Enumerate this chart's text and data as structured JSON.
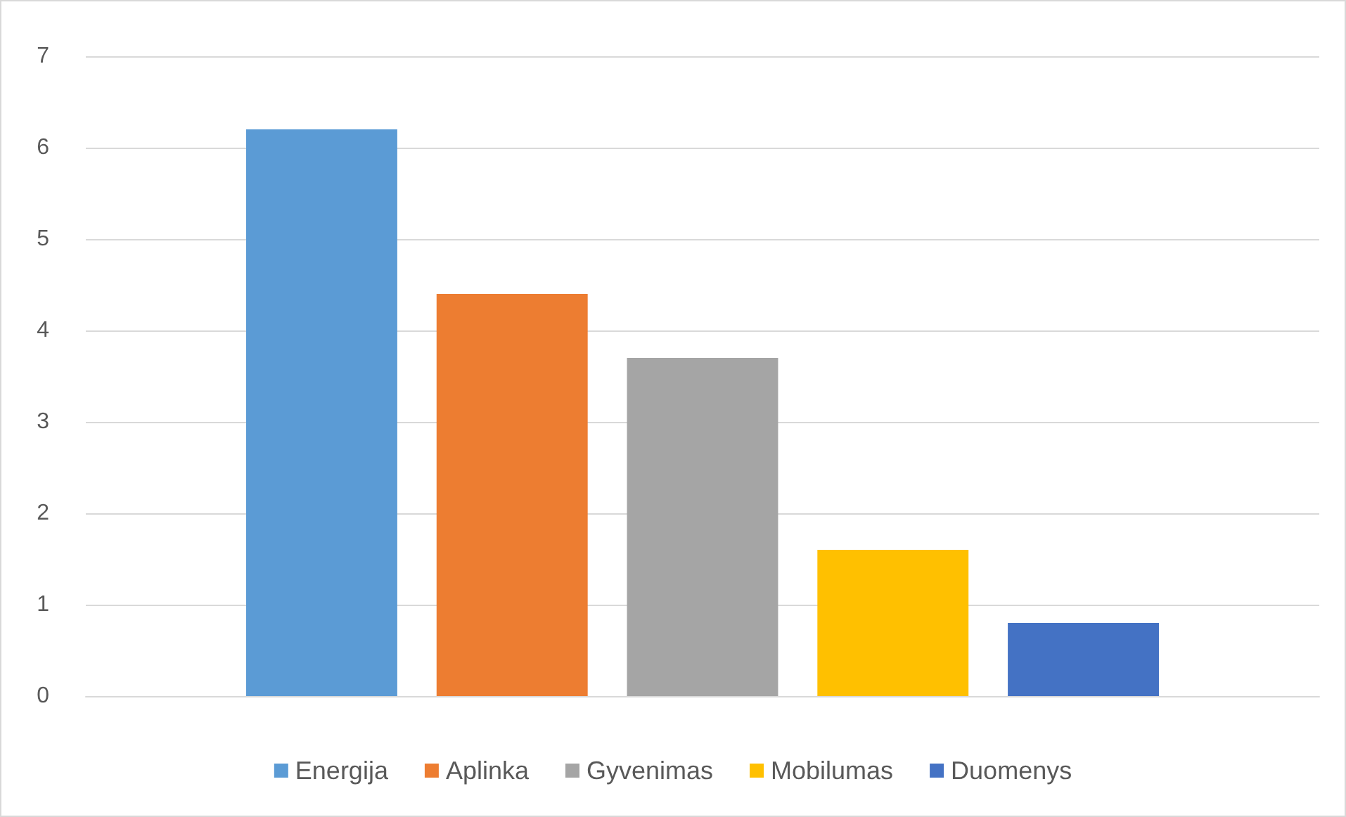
{
  "chart_data": {
    "type": "bar",
    "categories": [
      null
    ],
    "series": [
      {
        "name": "Energija",
        "color": "#5b9bd5",
        "values": [
          6.2
        ]
      },
      {
        "name": "Aplinka",
        "color": "#ed7d31",
        "values": [
          4.4
        ]
      },
      {
        "name": "Gyvenimas",
        "color": "#a5a5a5",
        "values": [
          3.7
        ]
      },
      {
        "name": "Mobilumas",
        "color": "#ffc000",
        "values": [
          1.6
        ]
      },
      {
        "name": "Duomenys",
        "color": "#4472c4",
        "values": [
          0.8
        ]
      }
    ],
    "ylim": [
      0,
      7
    ],
    "yticks": [
      0,
      1,
      2,
      3,
      4,
      5,
      6,
      7
    ],
    "grid": "y",
    "legend": "bottom"
  }
}
